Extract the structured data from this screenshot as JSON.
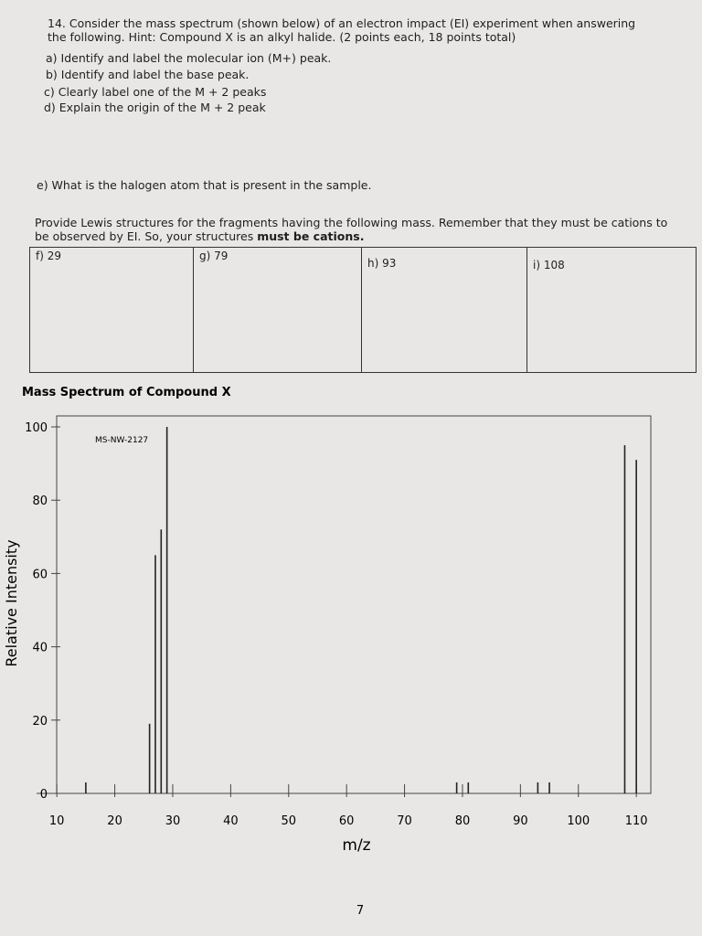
{
  "question": {
    "intro": "14. Consider the mass spectrum (shown below) of an electron impact (EI) experiment when answering the following. Hint: Compound X is an alkyl halide. (2 points each, 18 points total)",
    "parts": [
      "a) Identify and label the molecular ion (M+) peak.",
      "b) Identify and label the base peak.",
      "c) Clearly label one of the M + 2 peaks",
      "d) Explain the origin of the M + 2 peak"
    ],
    "part_e": "e) What is the halogen atom that is present in the sample.",
    "instructions": "Provide Lewis structures for the fragments having the following mass. Remember that they must be cations to be observed by EI. So, your structures",
    "instructions_emphasis": "must be cations.",
    "boxes": [
      "f) 29",
      "g) 79",
      "h) 93",
      "i) 108"
    ]
  },
  "chart_data": {
    "type": "bar",
    "title": "Mass Spectrum of Compound X",
    "annotation": "MS-NW-2127",
    "x_label": "m/z",
    "y_label": "Relative Intensity",
    "color": "#222222",
    "x": [
      15,
      26,
      27,
      28,
      29,
      79,
      81,
      93,
      95,
      108,
      110
    ],
    "values": [
      3,
      19,
      65,
      72,
      100,
      3,
      3,
      3,
      3,
      95,
      91
    ],
    "xlim": [
      6.5,
      112.5
    ],
    "ylim": [
      0,
      103
    ],
    "xticks": [
      10,
      20,
      30,
      40,
      50,
      60,
      70,
      80,
      90,
      100,
      110
    ],
    "yticks": [
      0,
      20,
      40,
      60,
      80,
      100
    ]
  },
  "page_number": "7"
}
